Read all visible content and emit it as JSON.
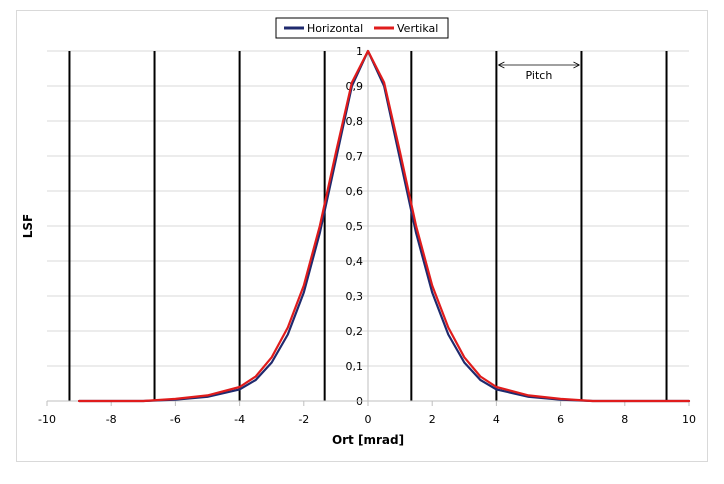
{
  "chart_data": {
    "type": "line",
    "xlabel": "Ort [mrad]",
    "ylabel": "LSF",
    "xlim": [
      -10,
      10
    ],
    "ylim": [
      0,
      1
    ],
    "x_ticks": [
      -10,
      -8,
      -6,
      -4,
      -2,
      0,
      2,
      4,
      6,
      8,
      10
    ],
    "x_tick_labels": [
      "-10",
      "-8",
      "-6",
      "-4",
      "-2",
      "0",
      "2",
      "4",
      "6",
      "8",
      "10"
    ],
    "y_ticks": [
      0,
      0.1,
      0.2,
      0.3,
      0.4,
      0.5,
      0.6,
      0.7,
      0.8,
      0.9,
      1
    ],
    "y_tick_labels": [
      "0",
      "0,1",
      "0,2",
      "0,3",
      "0,4",
      "0,5",
      "0,6",
      "0,7",
      "0,8",
      "0,9",
      "1"
    ],
    "grid": "horizontal",
    "legend": {
      "position": "top-center",
      "entries": [
        "Horizontal",
        "Vertikal"
      ]
    },
    "pitch_lines": [
      -9.3,
      -6.65,
      -4.0,
      -1.35,
      1.35,
      4.0,
      6.65,
      9.3
    ],
    "annotation": {
      "text": "Pitch",
      "from": 4.0,
      "to": 6.65,
      "y": 0.96
    },
    "colors": {
      "Horizontal": "#1f2a6e",
      "Vertikal": "#e01c1c",
      "pitch_lines": "#000000",
      "grid": "#d9d9d9"
    },
    "series": [
      {
        "name": "Horizontal",
        "x": [
          -9.0,
          -8.0,
          -7.0,
          -6.0,
          -5.0,
          -4.0,
          -3.5,
          -3.0,
          -2.5,
          -2.0,
          -1.5,
          -1.0,
          -0.5,
          0.0,
          0.5,
          1.0,
          1.5,
          2.0,
          2.5,
          3.0,
          3.5,
          4.0,
          5.0,
          6.0,
          7.0,
          8.0,
          9.0,
          10.0
        ],
        "y": [
          0.0,
          0.0,
          0.0,
          0.004,
          0.012,
          0.033,
          0.06,
          0.11,
          0.19,
          0.31,
          0.48,
          0.69,
          0.9,
          1.0,
          0.9,
          0.69,
          0.48,
          0.31,
          0.19,
          0.11,
          0.06,
          0.033,
          0.012,
          0.004,
          0.0,
          0.0,
          0.0,
          0.0
        ]
      },
      {
        "name": "Vertikal",
        "x": [
          -9.0,
          -8.0,
          -7.0,
          -6.0,
          -5.0,
          -4.0,
          -3.5,
          -3.0,
          -2.5,
          -2.0,
          -1.5,
          -1.0,
          -0.5,
          0.0,
          0.5,
          1.0,
          1.5,
          2.0,
          2.5,
          3.0,
          3.5,
          4.0,
          5.0,
          6.0,
          7.0,
          8.0,
          9.0,
          10.0
        ],
        "y": [
          0.0,
          0.0,
          0.0,
          0.006,
          0.016,
          0.04,
          0.07,
          0.125,
          0.21,
          0.33,
          0.5,
          0.71,
          0.91,
          1.0,
          0.91,
          0.71,
          0.5,
          0.33,
          0.21,
          0.125,
          0.07,
          0.04,
          0.016,
          0.006,
          0.0,
          0.0,
          0.0,
          0.0
        ]
      }
    ]
  }
}
